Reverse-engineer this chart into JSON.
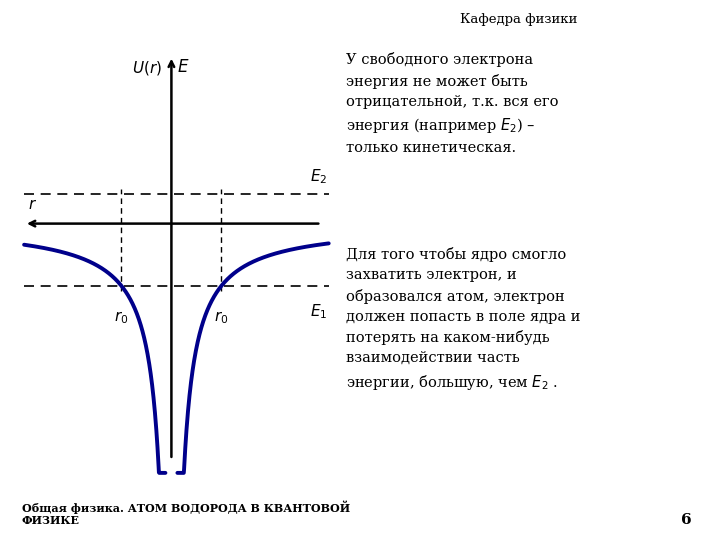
{
  "bg_color": "#ffffff",
  "curve_color": "#00008B",
  "curve_linewidth": 2.8,
  "r0": 1.0,
  "E2_level": 0.18,
  "E1_level": -0.38,
  "xlim": [
    -3.0,
    3.2
  ],
  "ylim": [
    -1.6,
    1.1
  ],
  "header_text": "Кафедра физики",
  "footer_text": "Общая физика. АТОМ ВОДОРОДА В КВАНТОВОЙ\nФИЗИКЕ",
  "page_number": "6"
}
